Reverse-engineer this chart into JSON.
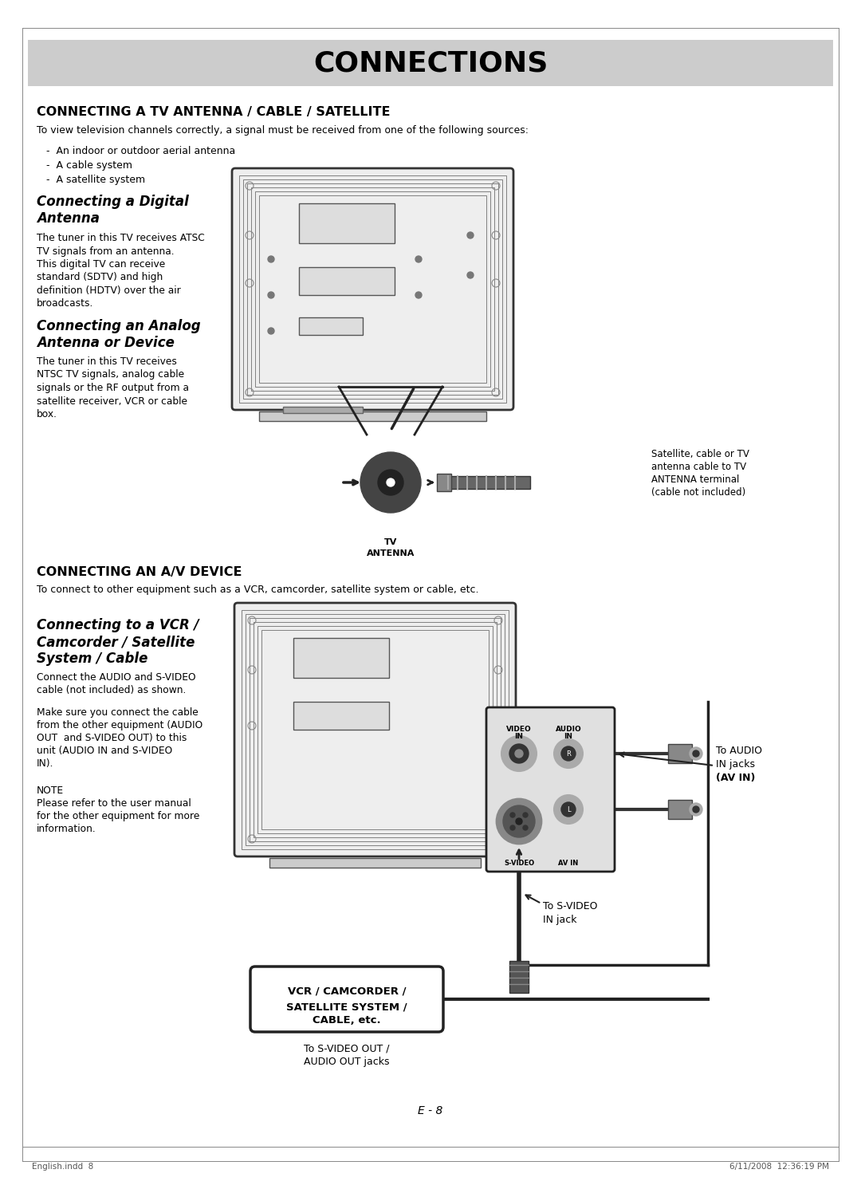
{
  "page_bg": "#ffffff",
  "header_bg": "#cccccc",
  "header_text": "CONNECTIONS",
  "section1_title": "CONNECTING A TV ANTENNA / CABLE / SATELLITE",
  "section1_subtitle": "To view television channels correctly, a signal must be received from one of the following sources:",
  "section1_bullets": [
    "An indoor or outdoor aerial antenna",
    "A cable system",
    "A satellite system"
  ],
  "sub1_title_line1": "Connecting a Digital",
  "sub1_title_line2": "Antenna",
  "sub1_body_line1": "The tuner in this TV receives ATSC",
  "sub1_body_line2": "TV signals from an antenna.",
  "sub1_body_line3": "This digital TV can receive",
  "sub1_body_line4": "standard (SDTV) and high",
  "sub1_body_line5": "definition (HDTV) over the air",
  "sub1_body_line6": "broadcasts.",
  "sub2_title_line1": "Connecting an Analog",
  "sub2_title_line2": "Antenna or Device",
  "sub2_body_line1": "The tuner in this TV receives",
  "sub2_body_line2": "NTSC TV signals, analog cable",
  "sub2_body_line3": "signals or the RF output from a",
  "sub2_body_line4": "satellite receiver, VCR or cable",
  "sub2_body_line5": "box.",
  "antenna_caption": [
    "Satellite, cable or TV",
    "antenna cable to TV",
    "ANTENNA terminal",
    "(cable not included)"
  ],
  "antenna_label_line1": "TV",
  "antenna_label_line2": "ANTENNA",
  "section2_title": "CONNECTING AN A/V DEVICE",
  "section2_subtitle": "To connect to other equipment such as a VCR, camcorder, satellite system or cable, etc.",
  "sub3_title_line1": "Connecting to a VCR /",
  "sub3_title_line2": "Camcorder / Satellite",
  "sub3_title_line3": "System / Cable",
  "sub3_body1_line1": "Connect the AUDIO and S-VIDEO",
  "sub3_body1_line2": "cable (not included) as shown.",
  "sub3_body2_line1": "Make sure you connect the cable",
  "sub3_body2_line2": "from the other equipment (AUDIO",
  "sub3_body2_line3": "OUT  and S-VIDEO OUT) to this",
  "sub3_body2_line4": "unit (AUDIO IN and S-VIDEO",
  "sub3_body2_line5": "IN).",
  "note_line1": "NOTE",
  "note_line2": "Please refer to the user manual",
  "note_line3": "for the other equipment for more",
  "note_line4": "information.",
  "av_to_audio": "To AUDIO",
  "av_in_jacks": "IN jacks",
  "av_in_bold": "(AV IN)",
  "av_svideo_label1": "To S-VIDEO",
  "av_svideo_label2": "IN jack",
  "vcr_box_line1": "VCR / CAMCORDER /",
  "vcr_box_line2": "SATELLITE SYSTEM /",
  "vcr_box_line3": "CABLE, etc.",
  "svideo_out_line1": "To S-VIDEO OUT /",
  "svideo_out_line2": "AUDIO OUT jacks",
  "vid_in_label": "VIDEO\nIN",
  "aud_in_label": "AUDIO\nIN",
  "svideo_label": "S-VIDEO",
  "avin_label": "AV IN",
  "R_label": "R",
  "L_label": "L",
  "page_num": "E - 8",
  "footer_left": "English.indd  8",
  "footer_right": "6/11/2008  12:36:19 PM"
}
